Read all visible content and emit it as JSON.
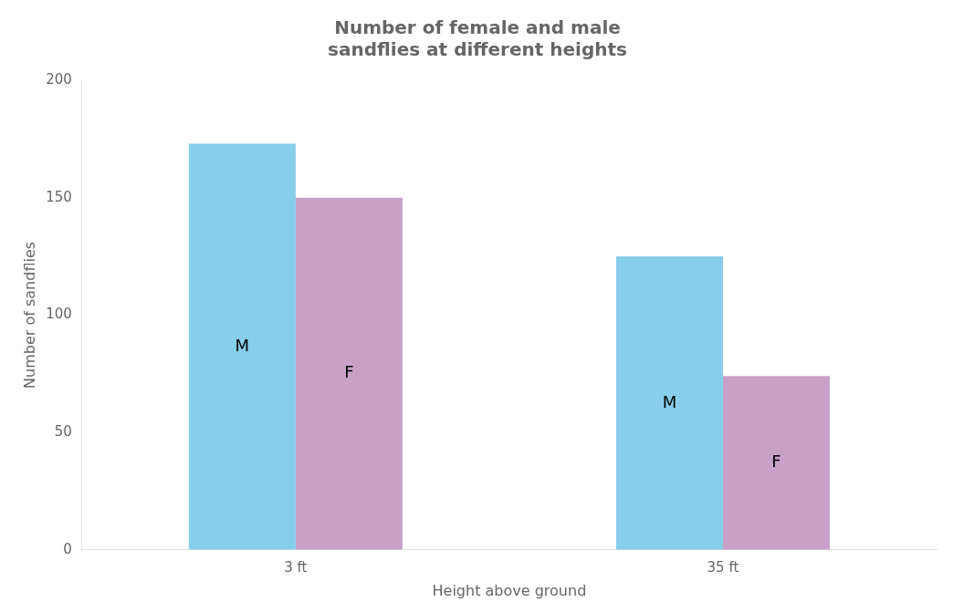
{
  "chart_data": {
    "type": "bar",
    "title": "Number of female and male\nsandflies at different heights",
    "xlabel": "Height above ground",
    "ylabel": "Number of sandflies",
    "categories": [
      "3 ft",
      "35 ft"
    ],
    "series": [
      {
        "name": "M",
        "color": "#87CEEB",
        "values": [
          173,
          125
        ]
      },
      {
        "name": "F",
        "color": "#C8A0C8",
        "values": [
          150,
          74
        ]
      }
    ],
    "ylim": [
      0,
      200
    ],
    "yticks": [
      0,
      50,
      100,
      150,
      200
    ],
    "grid": false
  }
}
